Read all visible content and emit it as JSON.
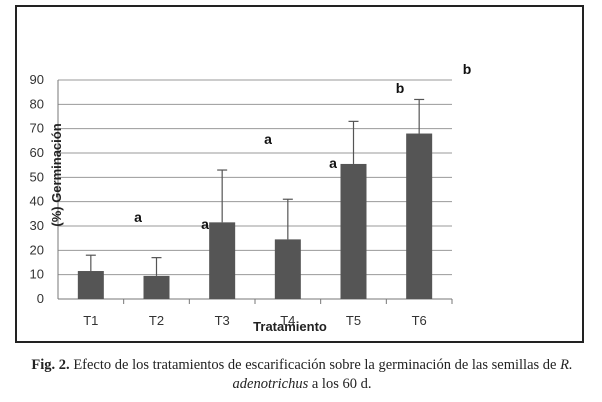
{
  "chart_data": {
    "type": "bar",
    "categories": [
      "T1",
      "T2",
      "T3",
      "T4",
      "T5",
      "T6"
    ],
    "values": [
      11.5,
      9.5,
      31.5,
      24.5,
      55.5,
      68
    ],
    "error_upper": [
      18,
      17,
      53,
      41,
      73,
      82
    ],
    "significance_letters": [
      {
        "text": "a",
        "near": "T2"
      },
      {
        "text": "a",
        "near": "T3"
      },
      {
        "text": "a",
        "near": "T4"
      },
      {
        "text": "a",
        "near": "T5"
      },
      {
        "text": "b",
        "near": "T6"
      },
      {
        "text": "b",
        "near": "right-of-plot"
      }
    ],
    "xlabel": "Tratamiento",
    "ylabel": "(%) Germinación",
    "ylim": [
      0,
      90
    ],
    "yticks": [
      0,
      10,
      20,
      30,
      40,
      50,
      60,
      70,
      80,
      90
    ],
    "grid": true,
    "bar_color": "#555555"
  },
  "caption": {
    "label": "Fig. 2.",
    "text_before_species": " Efecto de los tratamientos de escarificación sobre la germinación de las semillas de ",
    "species": "R. adenotrichus",
    "text_after_species": " a los 60 d."
  }
}
